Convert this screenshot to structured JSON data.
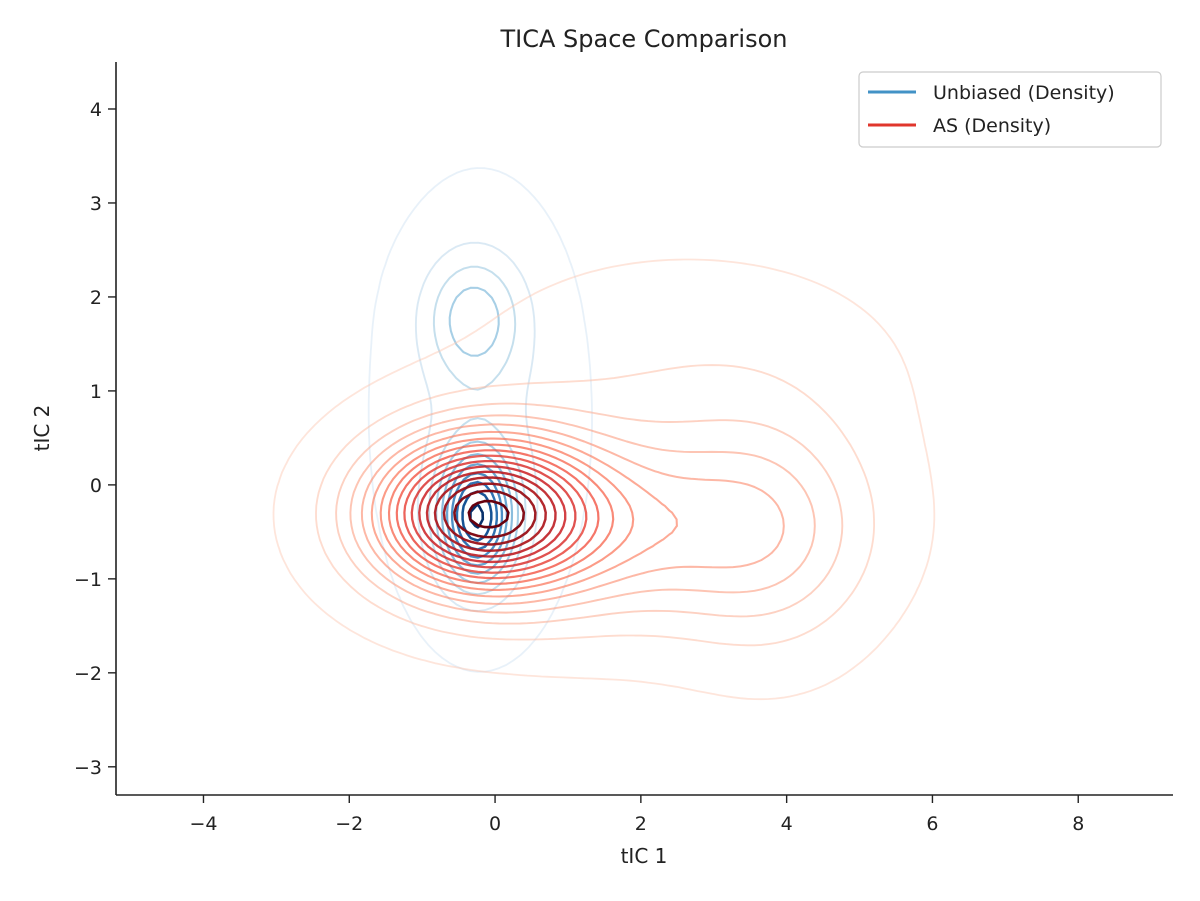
{
  "chart_data": {
    "type": "contour",
    "title": "TICA Space Comparison",
    "xlabel": "tIC 1",
    "ylabel": "tIC 2",
    "xlim": [
      -5.2,
      9.3
    ],
    "ylim": [
      -3.3,
      4.5
    ],
    "xticks": [
      -4,
      -2,
      0,
      2,
      4,
      6,
      8
    ],
    "yticks": [
      -3,
      -2,
      -1,
      0,
      1,
      2,
      3,
      4
    ],
    "grid": false,
    "legend_position": "top-right",
    "series": [
      {
        "name": "Unbiased (Density)",
        "colormap": "Blues",
        "legend_color": "#4292c6",
        "levels": 10,
        "peaks": [
          {
            "x": -0.25,
            "y": -0.35,
            "sx": 0.35,
            "sy": 0.45,
            "w": 1.0
          },
          {
            "x": -0.3,
            "y": 1.8,
            "sx": 0.45,
            "sy": 0.45,
            "w": 0.35
          },
          {
            "x": -0.2,
            "y": 0.7,
            "sx": 0.75,
            "sy": 1.3,
            "w": 0.18
          }
        ]
      },
      {
        "name": "AS (Density)",
        "colormap": "Reds",
        "legend_color": "#e0362c",
        "levels": 17,
        "peaks": [
          {
            "x": -0.2,
            "y": -0.3,
            "sx": 1.0,
            "sy": 0.55,
            "w": 1.0
          },
          {
            "x": 1.8,
            "y": -0.45,
            "sx": 1.7,
            "sy": 0.7,
            "w": 0.3
          },
          {
            "x": 3.8,
            "y": -0.5,
            "sx": 0.9,
            "sy": 0.85,
            "w": 0.16
          },
          {
            "x": 2.6,
            "y": 1.2,
            "sx": 1.9,
            "sy": 0.8,
            "w": 0.07
          }
        ]
      }
    ]
  }
}
